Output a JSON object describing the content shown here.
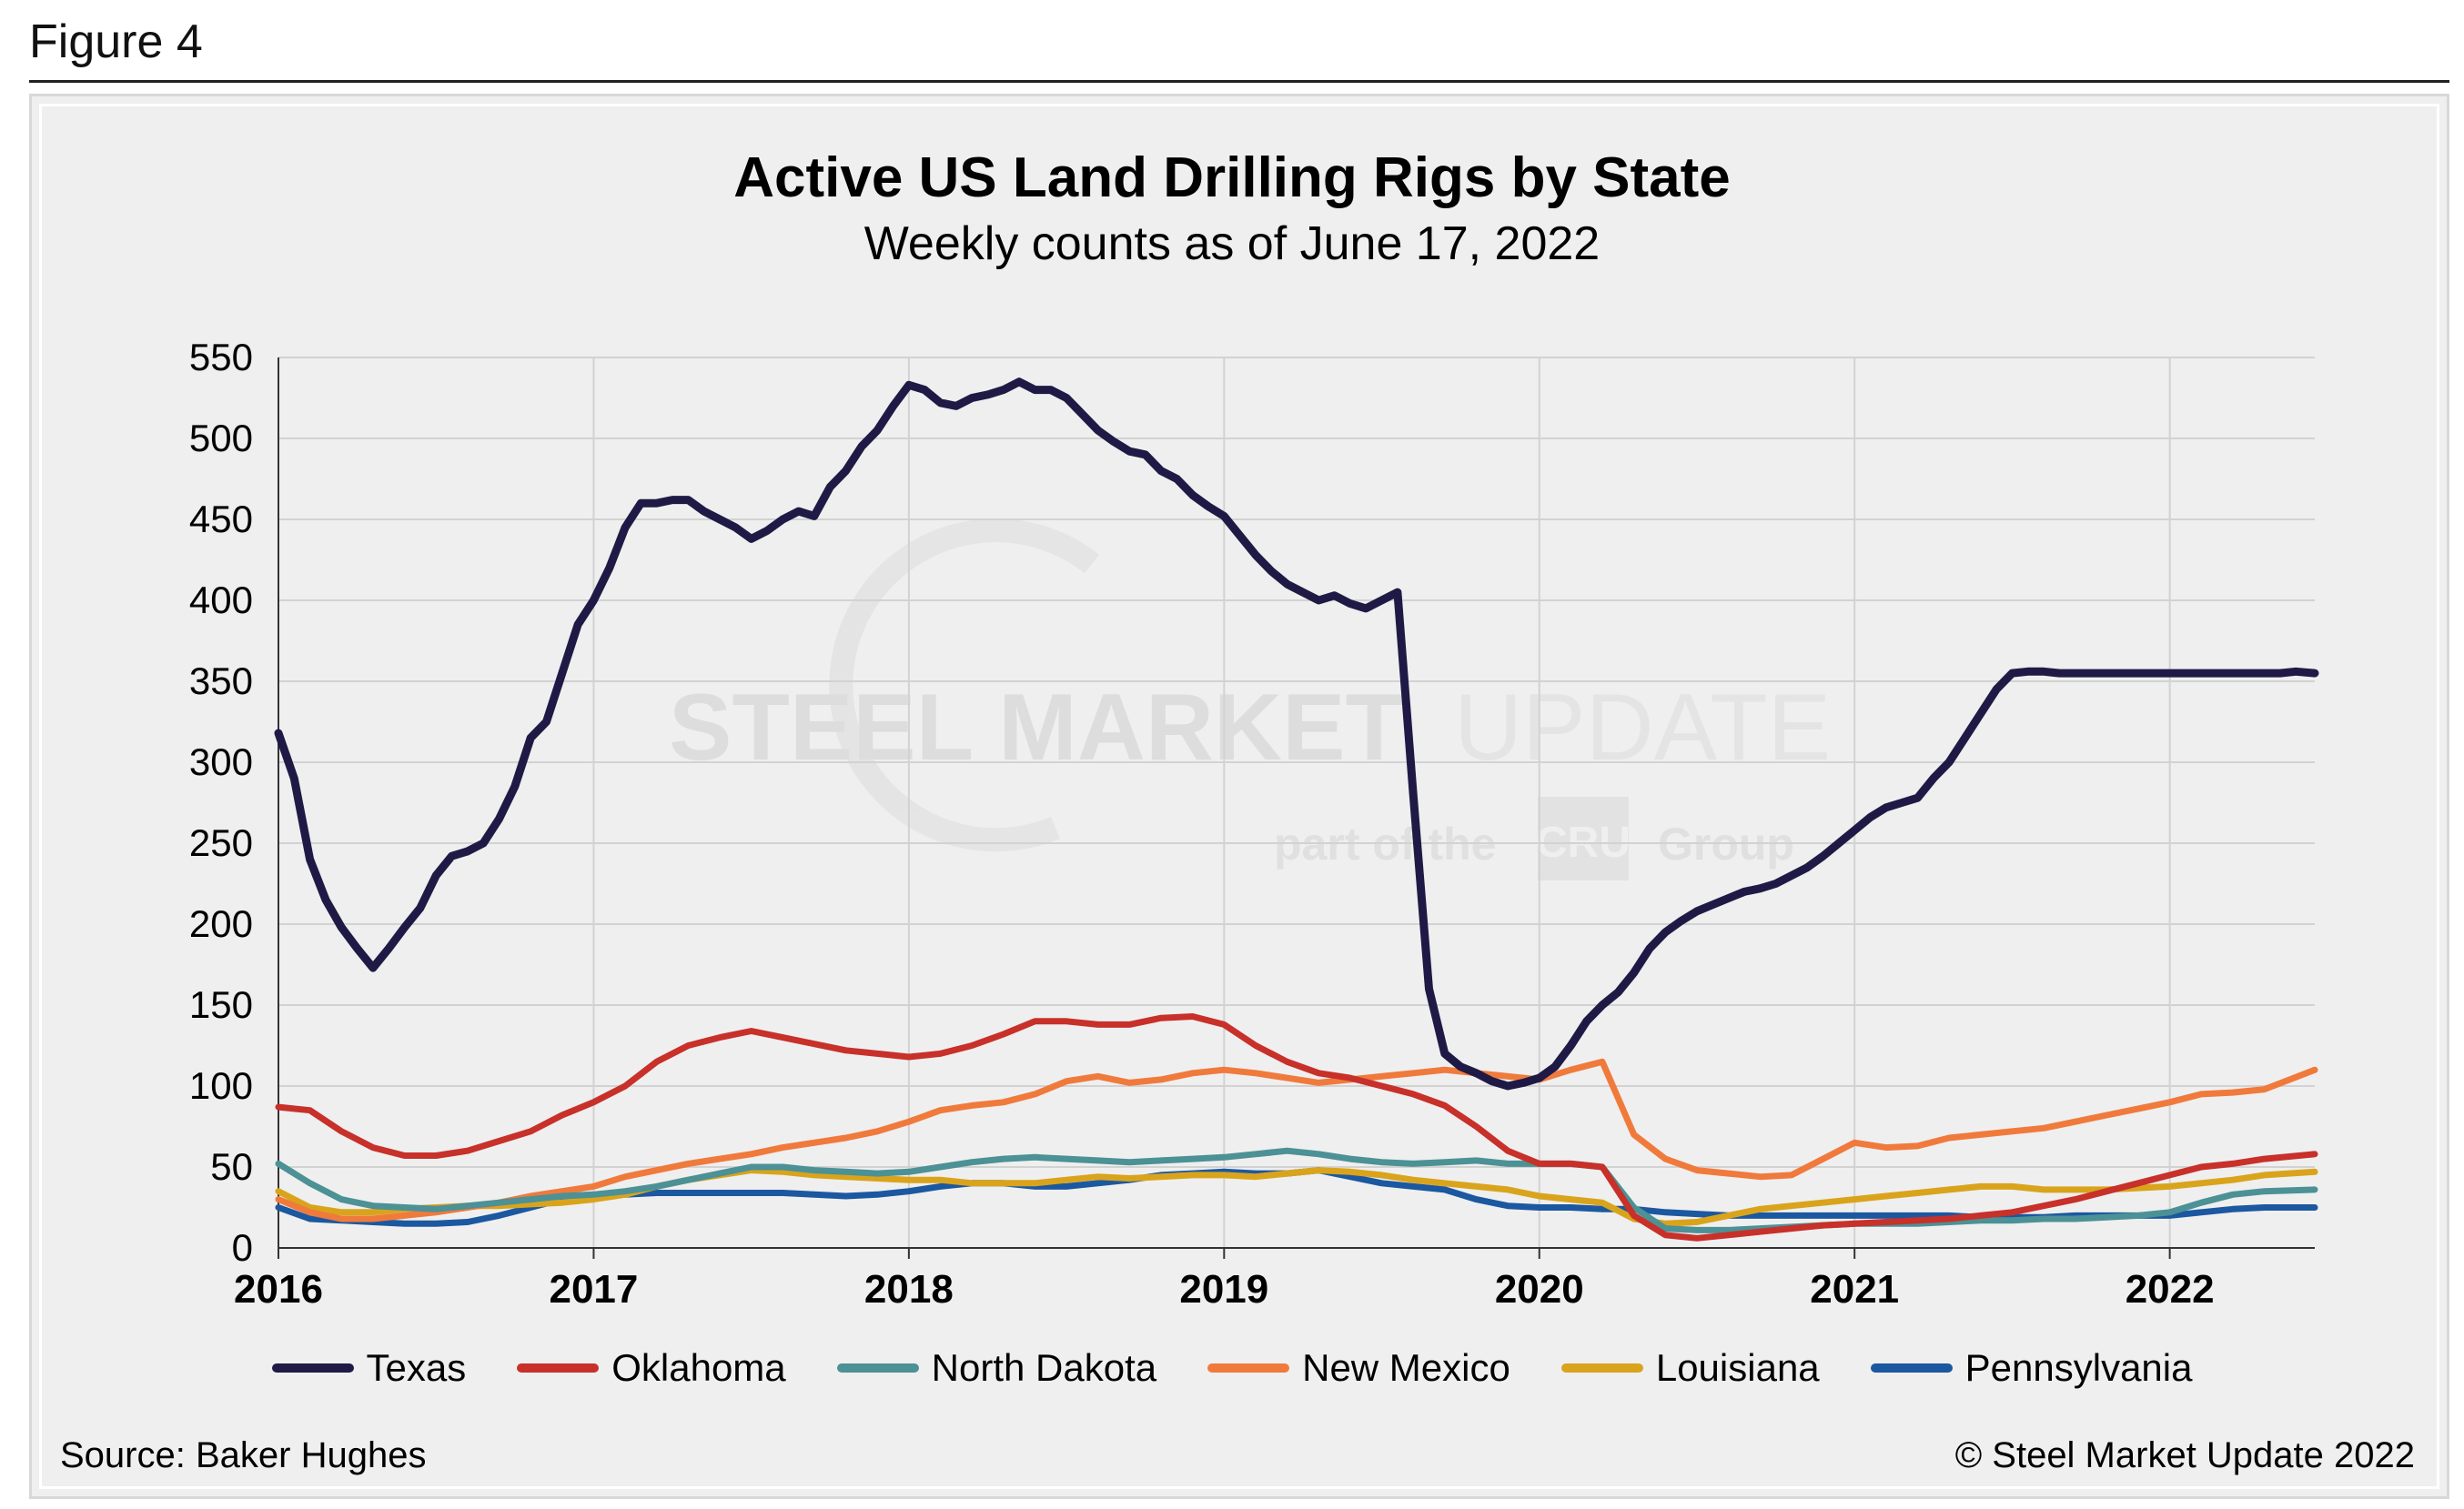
{
  "figure_label": "Figure 4",
  "source": "Source: Baker Hughes",
  "copyright": "© Steel Market Update 2022",
  "watermark": {
    "line1_bold": "STEEL MARKET",
    "line1_light": "UPDATE",
    "line2_a": "part of the",
    "line2_logo": "CRU",
    "line2_b": "Group"
  },
  "chart_data": {
    "type": "line",
    "title": "Active US Land Drilling Rigs by State",
    "subtitle": "Weekly counts as of June 17, 2022",
    "xlabel": "",
    "ylabel": "",
    "xlim": [
      2016.0,
      2022.46
    ],
    "ylim": [
      0,
      550
    ],
    "yticks": [
      0,
      50,
      100,
      150,
      200,
      250,
      300,
      350,
      400,
      450,
      500,
      550
    ],
    "xticks": [
      "2016",
      "2017",
      "2018",
      "2019",
      "2020",
      "2021",
      "2022"
    ],
    "grid": true,
    "legend_position": "bottom",
    "series": [
      {
        "name": "Texas",
        "color": "#1f1a45",
        "x": [
          2016.0,
          2016.05,
          2016.1,
          2016.15,
          2016.2,
          2016.25,
          2016.3,
          2016.35,
          2016.4,
          2016.45,
          2016.5,
          2016.55,
          2016.6,
          2016.65,
          2016.7,
          2016.75,
          2016.8,
          2016.85,
          2016.9,
          2016.95,
          2017.0,
          2017.05,
          2017.1,
          2017.15,
          2017.2,
          2017.25,
          2017.3,
          2017.35,
          2017.4,
          2017.45,
          2017.5,
          2017.55,
          2017.6,
          2017.65,
          2017.7,
          2017.75,
          2017.8,
          2017.85,
          2017.9,
          2017.95,
          2018.0,
          2018.05,
          2018.1,
          2018.15,
          2018.2,
          2018.25,
          2018.3,
          2018.35,
          2018.4,
          2018.45,
          2018.5,
          2018.55,
          2018.6,
          2018.65,
          2018.7,
          2018.75,
          2018.8,
          2018.85,
          2018.9,
          2018.95,
          2019.0,
          2019.05,
          2019.1,
          2019.15,
          2019.2,
          2019.25,
          2019.3,
          2019.35,
          2019.4,
          2019.45,
          2019.5,
          2019.55,
          2019.6,
          2019.65,
          2019.7,
          2019.75,
          2019.8,
          2019.85,
          2019.9,
          2019.95,
          2020.0,
          2020.05,
          2020.1,
          2020.15,
          2020.2,
          2020.25,
          2020.3,
          2020.35,
          2020.4,
          2020.45,
          2020.5,
          2020.55,
          2020.6,
          2020.65,
          2020.7,
          2020.75,
          2020.8,
          2020.85,
          2020.9,
          2020.95,
          2021.0,
          2021.05,
          2021.1,
          2021.15,
          2021.2,
          2021.25,
          2021.3,
          2021.35,
          2021.4,
          2021.45,
          2021.5,
          2021.55,
          2021.6,
          2021.65,
          2021.7,
          2021.75,
          2021.8,
          2021.85,
          2021.9,
          2021.95,
          2022.0,
          2022.05,
          2022.1,
          2022.15,
          2022.2,
          2022.25,
          2022.3,
          2022.35,
          2022.4,
          2022.46
        ],
        "y": [
          318,
          290,
          240,
          215,
          198,
          185,
          173,
          185,
          198,
          210,
          230,
          242,
          245,
          250,
          265,
          285,
          315,
          325,
          355,
          385,
          400,
          420,
          445,
          460,
          460,
          462,
          462,
          455,
          450,
          445,
          438,
          443,
          450,
          455,
          452,
          470,
          480,
          495,
          505,
          520,
          533,
          530,
          522,
          520,
          525,
          527,
          530,
          535,
          530,
          530,
          525,
          515,
          505,
          498,
          492,
          490,
          480,
          475,
          465,
          458,
          452,
          440,
          428,
          418,
          410,
          405,
          400,
          403,
          398,
          395,
          400,
          405,
          280,
          160,
          120,
          112,
          108,
          103,
          100,
          102,
          105,
          112,
          125,
          140,
          150,
          158,
          170,
          185,
          195,
          202,
          208,
          212,
          216,
          220,
          222,
          225,
          230,
          235,
          242,
          250,
          258,
          266,
          272,
          275,
          278,
          290,
          300,
          315,
          330,
          345,
          355,
          356,
          356,
          355,
          355,
          355,
          355,
          355,
          355,
          355,
          355,
          355,
          355,
          355,
          355,
          355,
          355,
          355,
          356,
          355
        ]
      },
      {
        "name": "Oklahoma",
        "color": "#c8302a",
        "x": [
          2016.0,
          2016.1,
          2016.2,
          2016.3,
          2016.4,
          2016.5,
          2016.6,
          2016.7,
          2016.8,
          2016.9,
          2017.0,
          2017.1,
          2017.2,
          2017.3,
          2017.4,
          2017.5,
          2017.6,
          2017.7,
          2017.8,
          2017.9,
          2018.0,
          2018.1,
          2018.2,
          2018.3,
          2018.4,
          2018.5,
          2018.6,
          2018.7,
          2018.8,
          2018.9,
          2019.0,
          2019.1,
          2019.2,
          2019.3,
          2019.4,
          2019.5,
          2019.6,
          2019.7,
          2019.8,
          2019.9,
          2020.0,
          2020.1,
          2020.2,
          2020.3,
          2020.4,
          2020.5,
          2020.6,
          2020.7,
          2020.8,
          2020.9,
          2021.0,
          2021.1,
          2021.2,
          2021.3,
          2021.4,
          2021.5,
          2021.6,
          2021.7,
          2021.8,
          2021.9,
          2022.0,
          2022.1,
          2022.2,
          2022.3,
          2022.46
        ],
        "y": [
          87,
          85,
          72,
          62,
          57,
          57,
          60,
          66,
          72,
          82,
          90,
          100,
          115,
          125,
          130,
          134,
          130,
          126,
          122,
          120,
          118,
          120,
          125,
          132,
          140,
          140,
          138,
          138,
          142,
          143,
          138,
          125,
          115,
          108,
          105,
          100,
          95,
          88,
          75,
          60,
          52,
          52,
          50,
          20,
          8,
          6,
          8,
          10,
          12,
          14,
          15,
          16,
          17,
          18,
          20,
          22,
          26,
          30,
          35,
          40,
          45,
          50,
          52,
          55,
          58
        ]
      },
      {
        "name": "North Dakota",
        "color": "#4c9195",
        "x": [
          2016.0,
          2016.1,
          2016.2,
          2016.3,
          2016.4,
          2016.5,
          2016.6,
          2016.7,
          2016.8,
          2016.9,
          2017.0,
          2017.1,
          2017.2,
          2017.3,
          2017.4,
          2017.5,
          2017.6,
          2017.7,
          2017.8,
          2017.9,
          2018.0,
          2018.1,
          2018.2,
          2018.3,
          2018.4,
          2018.5,
          2018.6,
          2018.7,
          2018.8,
          2018.9,
          2019.0,
          2019.1,
          2019.2,
          2019.3,
          2019.4,
          2019.5,
          2019.6,
          2019.7,
          2019.8,
          2019.9,
          2020.0,
          2020.1,
          2020.2,
          2020.3,
          2020.4,
          2020.5,
          2020.6,
          2020.7,
          2020.8,
          2020.9,
          2021.0,
          2021.1,
          2021.2,
          2021.3,
          2021.4,
          2021.5,
          2021.6,
          2021.7,
          2021.8,
          2021.9,
          2022.0,
          2022.1,
          2022.2,
          2022.3,
          2022.46
        ],
        "y": [
          52,
          40,
          30,
          26,
          25,
          24,
          26,
          28,
          30,
          32,
          33,
          35,
          38,
          42,
          46,
          50,
          50,
          48,
          47,
          46,
          47,
          50,
          53,
          55,
          56,
          55,
          54,
          53,
          54,
          55,
          56,
          58,
          60,
          58,
          55,
          53,
          52,
          53,
          54,
          52,
          52,
          52,
          50,
          25,
          12,
          11,
          11,
          12,
          13,
          14,
          15,
          15,
          15,
          16,
          17,
          17,
          18,
          18,
          19,
          20,
          22,
          28,
          33,
          35,
          36
        ]
      },
      {
        "name": "New Mexico",
        "color": "#f07a3c",
        "x": [
          2016.0,
          2016.1,
          2016.2,
          2016.3,
          2016.4,
          2016.5,
          2016.6,
          2016.7,
          2016.8,
          2016.9,
          2017.0,
          2017.1,
          2017.2,
          2017.3,
          2017.4,
          2017.5,
          2017.6,
          2017.7,
          2017.8,
          2017.9,
          2018.0,
          2018.1,
          2018.2,
          2018.3,
          2018.4,
          2018.5,
          2018.6,
          2018.7,
          2018.8,
          2018.9,
          2019.0,
          2019.1,
          2019.2,
          2019.3,
          2019.4,
          2019.5,
          2019.6,
          2019.7,
          2019.8,
          2019.9,
          2020.0,
          2020.1,
          2020.2,
          2020.3,
          2020.4,
          2020.5,
          2020.6,
          2020.7,
          2020.8,
          2020.9,
          2021.0,
          2021.1,
          2021.2,
          2021.3,
          2021.4,
          2021.5,
          2021.6,
          2021.7,
          2021.8,
          2021.9,
          2022.0,
          2022.1,
          2022.2,
          2022.3,
          2022.46
        ],
        "y": [
          30,
          22,
          18,
          18,
          20,
          22,
          25,
          28,
          32,
          35,
          38,
          44,
          48,
          52,
          55,
          58,
          62,
          65,
          68,
          72,
          78,
          85,
          88,
          90,
          95,
          103,
          106,
          102,
          104,
          108,
          110,
          108,
          105,
          102,
          104,
          106,
          108,
          110,
          108,
          106,
          104,
          110,
          115,
          70,
          55,
          48,
          46,
          44,
          45,
          55,
          65,
          62,
          63,
          68,
          70,
          72,
          74,
          78,
          82,
          86,
          90,
          95,
          96,
          98,
          110
        ]
      },
      {
        "name": "Louisiana",
        "color": "#d9a41c",
        "x": [
          2016.0,
          2016.1,
          2016.2,
          2016.3,
          2016.4,
          2016.5,
          2016.6,
          2016.7,
          2016.8,
          2016.9,
          2017.0,
          2017.1,
          2017.2,
          2017.3,
          2017.4,
          2017.5,
          2017.6,
          2017.7,
          2017.8,
          2017.9,
          2018.0,
          2018.1,
          2018.2,
          2018.3,
          2018.4,
          2018.5,
          2018.6,
          2018.7,
          2018.8,
          2018.9,
          2019.0,
          2019.1,
          2019.2,
          2019.3,
          2019.4,
          2019.5,
          2019.6,
          2019.7,
          2019.8,
          2019.9,
          2020.0,
          2020.1,
          2020.2,
          2020.3,
          2020.4,
          2020.5,
          2020.6,
          2020.7,
          2020.8,
          2020.9,
          2021.0,
          2021.1,
          2021.2,
          2021.3,
          2021.4,
          2021.5,
          2021.6,
          2021.7,
          2021.8,
          2021.9,
          2022.0,
          2022.1,
          2022.2,
          2022.3,
          2022.46
        ],
        "y": [
          35,
          25,
          22,
          22,
          24,
          25,
          26,
          26,
          27,
          28,
          30,
          33,
          38,
          42,
          45,
          48,
          47,
          45,
          44,
          43,
          42,
          42,
          40,
          40,
          40,
          42,
          44,
          43,
          44,
          45,
          45,
          44,
          46,
          48,
          47,
          45,
          42,
          40,
          38,
          36,
          32,
          30,
          28,
          18,
          15,
          16,
          20,
          24,
          26,
          28,
          30,
          32,
          34,
          36,
          38,
          38,
          36,
          36,
          36,
          37,
          38,
          40,
          42,
          45,
          47
        ]
      },
      {
        "name": "Pennsylvania",
        "color": "#1b58a0",
        "x": [
          2016.0,
          2016.1,
          2016.2,
          2016.3,
          2016.4,
          2016.5,
          2016.6,
          2016.7,
          2016.8,
          2016.9,
          2017.0,
          2017.1,
          2017.2,
          2017.3,
          2017.4,
          2017.5,
          2017.6,
          2017.7,
          2017.8,
          2017.9,
          2018.0,
          2018.1,
          2018.2,
          2018.3,
          2018.4,
          2018.5,
          2018.6,
          2018.7,
          2018.8,
          2018.9,
          2019.0,
          2019.1,
          2019.2,
          2019.3,
          2019.4,
          2019.5,
          2019.6,
          2019.7,
          2019.8,
          2019.9,
          2020.0,
          2020.1,
          2020.2,
          2020.3,
          2020.4,
          2020.5,
          2020.6,
          2020.7,
          2020.8,
          2020.9,
          2021.0,
          2021.1,
          2021.2,
          2021.3,
          2021.4,
          2021.5,
          2021.6,
          2021.7,
          2021.8,
          2021.9,
          2022.0,
          2022.1,
          2022.2,
          2022.3,
          2022.46
        ],
        "y": [
          25,
          18,
          17,
          16,
          15,
          15,
          16,
          20,
          25,
          30,
          32,
          33,
          34,
          34,
          34,
          34,
          34,
          33,
          32,
          33,
          35,
          38,
          40,
          40,
          38,
          38,
          40,
          42,
          45,
          46,
          47,
          46,
          46,
          48,
          44,
          40,
          38,
          36,
          30,
          26,
          25,
          25,
          24,
          24,
          22,
          21,
          20,
          20,
          20,
          20,
          20,
          20,
          20,
          20,
          19,
          19,
          19,
          20,
          20,
          20,
          20,
          22,
          24,
          25,
          25
        ]
      }
    ]
  }
}
